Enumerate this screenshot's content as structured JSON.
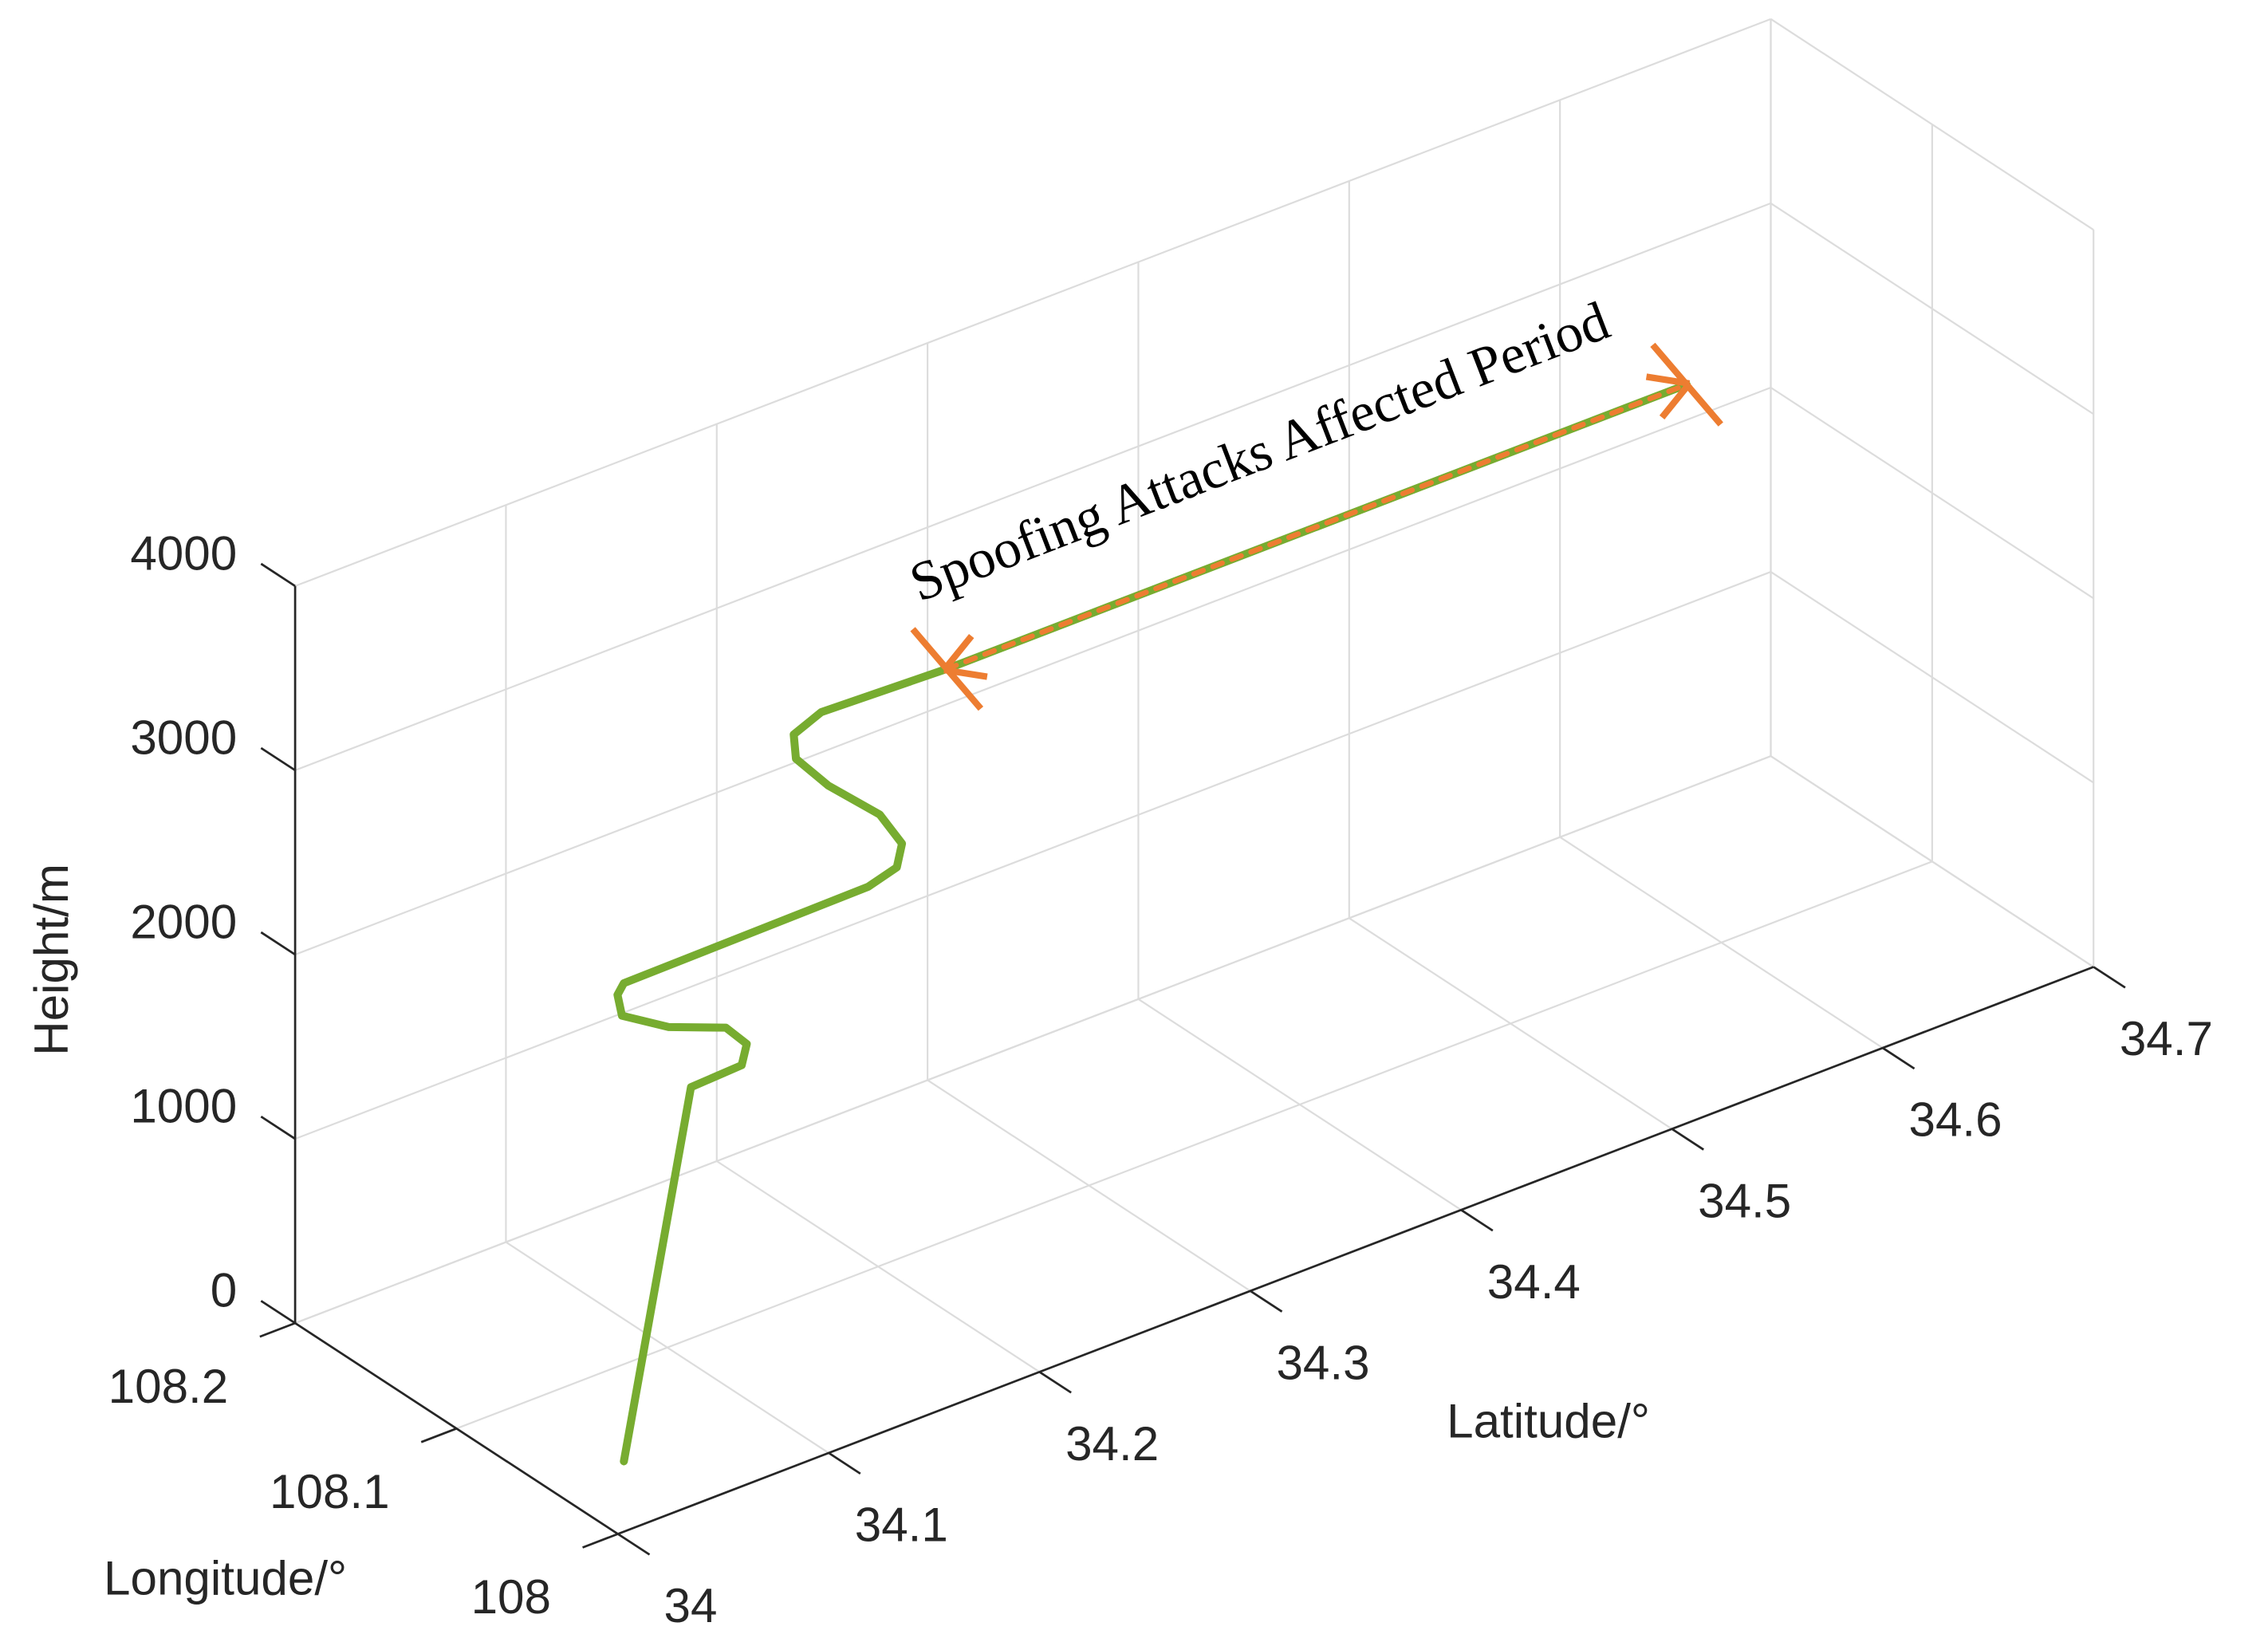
{
  "chart_data": {
    "type": "line3d",
    "xlabel": "Latitude/°",
    "ylabel": "Longitude/°",
    "zlabel": "Height/m",
    "annotation": "Spoofing Attacks Affected Period",
    "xlim": [
      34,
      34.7
    ],
    "xticks": [
      34,
      34.1,
      34.2,
      34.3,
      34.4,
      34.5,
      34.6,
      34.7
    ],
    "ylim": [
      108,
      108.2
    ],
    "yticks": [
      108,
      108.1,
      108.2
    ],
    "zlim": [
      0,
      4000
    ],
    "zticks": [
      0,
      1000,
      2000,
      3000,
      4000
    ],
    "grid": true,
    "series": [
      {
        "color": "#77ac30",
        "style": "solid",
        "x": [
          34.035,
          34.125,
          34.146,
          34.153,
          34.15,
          34.129,
          34.116,
          34.12,
          34.123,
          34.219,
          34.228,
          34.232,
          34.226,
          34.207,
          34.197,
          34.199,
          34.209,
          34.241,
          34.592
        ],
        "y": [
          108.042,
          108.118,
          108.114,
          108.12,
          108.129,
          108.137,
          108.149,
          108.157,
          108.157,
          108.131,
          108.125,
          108.127,
          108.133,
          108.14,
          108.147,
          108.151,
          108.147,
          108.111,
          108.111
        ],
        "z": [
          0,
          1200,
          1250,
          1300,
          1350,
          1400,
          1450,
          1500,
          1550,
          1800,
          1900,
          2000,
          2150,
          2350,
          2500,
          2600,
          2700,
          3000,
          3000
        ]
      },
      {
        "color": "#ed7d31",
        "style": "dashed",
        "x": [
          34.241,
          34.592
        ],
        "y": [
          108.111,
          108.111
        ],
        "z": [
          3000,
          3000
        ]
      }
    ]
  }
}
